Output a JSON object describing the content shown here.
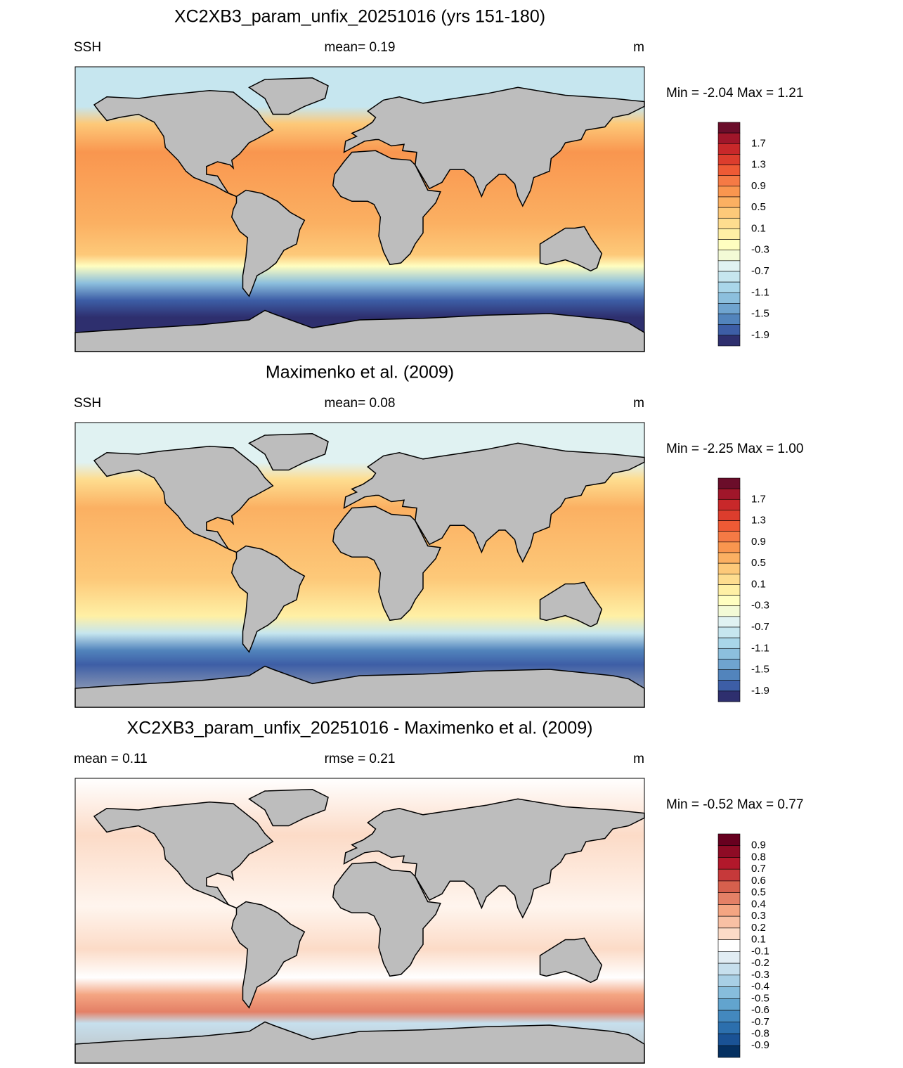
{
  "panels": [
    {
      "title": "XC2XB3_param_unfix_20251016 (yrs 151-180)",
      "left": "SSH",
      "center": "mean=   0.19",
      "units": "m",
      "minmax": "Min =  -2.04 Max =   1.21",
      "colorbar": {
        "colors": [
          "#6b0d2a",
          "#a0162a",
          "#c8282a",
          "#dc3d2d",
          "#ee5a35",
          "#f57a45",
          "#f9964f",
          "#fbb062",
          "#fdc979",
          "#fedd8f",
          "#fff0a5",
          "#fffec0",
          "#f3fad6",
          "#e0f2f2",
          "#c6e6ef",
          "#a9d6e9",
          "#8cbfdd",
          "#6fa4cf",
          "#5284bc",
          "#3d5ea6",
          "#2e2f6e"
        ],
        "labels": [
          "1.7",
          "1.3",
          "0.9",
          "0.5",
          "0.1",
          "-0.3",
          "-0.7",
          "-1.1",
          "-1.5",
          "-1.9"
        ]
      }
    },
    {
      "title": "Maximenko et al. (2009)",
      "left": "SSH",
      "center": "mean=   0.08",
      "units": "m",
      "minmax": "Min =  -2.25 Max =   1.00",
      "colorbar": {
        "colors": [
          "#6b0d2a",
          "#a0162a",
          "#c8282a",
          "#dc3d2d",
          "#ee5a35",
          "#f57a45",
          "#f9964f",
          "#fbb062",
          "#fdc979",
          "#fedd8f",
          "#fff0a5",
          "#fffec0",
          "#f3fad6",
          "#e0f2f2",
          "#c6e6ef",
          "#a9d6e9",
          "#8cbfdd",
          "#6fa4cf",
          "#5284bc",
          "#3d5ea6",
          "#2e2f6e"
        ],
        "labels": [
          "1.7",
          "1.3",
          "0.9",
          "0.5",
          "0.1",
          "-0.3",
          "-0.7",
          "-1.1",
          "-1.5",
          "-1.9"
        ]
      }
    },
    {
      "title": "XC2XB3_param_unfix_20251016 - Maximenko et al. (2009)",
      "left": "mean =   0.11",
      "center": "rmse =   0.21",
      "units": "m",
      "minmax": "Min =  -0.52 Max =   0.77",
      "colorbar": {
        "colors": [
          "#67001f",
          "#8e0b25",
          "#b2182b",
          "#c6393a",
          "#d6604d",
          "#e48066",
          "#f4a582",
          "#f8c0a4",
          "#fcdbc7",
          "#ffffff",
          "#e1edf4",
          "#c6dfed",
          "#a8cfe5",
          "#87bddc",
          "#62a4ce",
          "#4388be",
          "#2c6fad",
          "#1a5295",
          "#053061"
        ],
        "labels": [
          "0.9",
          "0.8",
          "0.7",
          "0.6",
          "0.5",
          "0.4",
          "0.3",
          "0.2",
          "0.1",
          "-0.1",
          "-0.2",
          "-0.3",
          "-0.4",
          "-0.5",
          "-0.6",
          "-0.7",
          "-0.8",
          "-0.9"
        ]
      }
    }
  ]
}
